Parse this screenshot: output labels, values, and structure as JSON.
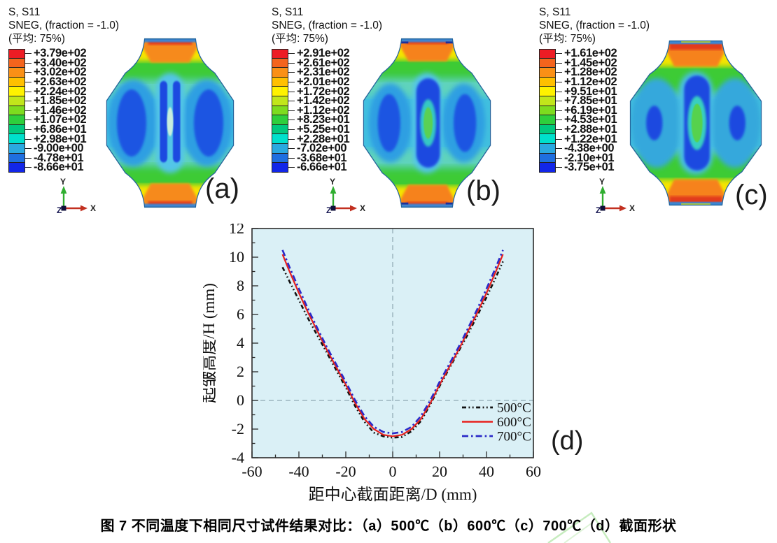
{
  "abaqus_header": {
    "line1": "S, S11",
    "line2": "SNEG, (fraction = -1.0)",
    "line3": "(平均: 75%)"
  },
  "legend_colors": [
    "#ed1c24",
    "#f4641d",
    "#fa9016",
    "#ffc000",
    "#fff200",
    "#c1e61b",
    "#7ddc1f",
    "#2ecf3c",
    "#00c97e",
    "#00e0cc",
    "#2aa9e0",
    "#1f6fe0",
    "#1226e8"
  ],
  "panels": [
    {
      "label": "(a)",
      "legend_values": [
        "+3.79e+02",
        "+3.40e+02",
        "+3.02e+02",
        "+2.63e+02",
        "+2.24e+02",
        "+1.85e+02",
        "+1.46e+02",
        "+1.07e+02",
        "+6.86e+01",
        "+2.98e+01",
        "-9.00e+00",
        "-4.78e+01",
        "-8.66e+01"
      ]
    },
    {
      "label": "(b)",
      "legend_values": [
        "+2.91e+02",
        "+2.61e+02",
        "+2.31e+02",
        "+2.01e+02",
        "+1.72e+02",
        "+1.42e+02",
        "+1.12e+02",
        "+8.23e+01",
        "+5.25e+01",
        "+2.28e+01",
        "-7.02e+00",
        "-3.68e+01",
        "-6.66e+01"
      ]
    },
    {
      "label": "(c)",
      "legend_values": [
        "+1.61e+02",
        "+1.45e+02",
        "+1.28e+02",
        "+1.12e+02",
        "+9.51e+01",
        "+7.85e+01",
        "+6.19e+01",
        "+4.53e+01",
        "+2.88e+01",
        "+1.22e+01",
        "-4.38e+00",
        "-2.10e+01",
        "-3.75e+01"
      ]
    }
  ],
  "triad": {
    "x": "X",
    "y": "Y",
    "z": "Z"
  },
  "chart_label": "(d)",
  "caption": "图 7 不同温度下相同尺寸试件结果对比：（a）500℃（b）600℃（c）700℃（d）截面形状",
  "chart_data": {
    "type": "line",
    "title": "",
    "xlabel": "距中心截面距离/D (mm)",
    "ylabel": "起皱高度/H (mm)",
    "xlim": [
      -60,
      60
    ],
    "ylim": [
      -4,
      12
    ],
    "xticks": [
      -60,
      -40,
      -20,
      0,
      20,
      40,
      60
    ],
    "yticks": [
      -4,
      -2,
      0,
      2,
      4,
      6,
      8,
      10,
      12
    ],
    "x_minor_step": 10,
    "y_minor_step": 1,
    "grid": false,
    "plot_bg": "#daf0f6",
    "frame_color": "#2b2b2b",
    "ref_line_color": "#8fa8b2",
    "reference_lines": {
      "x": 0,
      "y": 0
    },
    "legend_position": "lower right",
    "x": [
      -47,
      -44,
      -40,
      -36,
      -32,
      -28,
      -24,
      -20,
      -16,
      -12,
      -8,
      -4,
      0,
      4,
      8,
      12,
      16,
      20,
      24,
      28,
      32,
      36,
      40,
      44,
      47
    ],
    "series": [
      {
        "name": "500°C",
        "color": "#111111",
        "style": "dash-dot-dot",
        "y": [
          9.3,
          8.3,
          7.0,
          5.7,
          4.5,
          3.3,
          2.1,
          0.9,
          -0.4,
          -1.5,
          -2.25,
          -2.5,
          -2.6,
          -2.55,
          -2.15,
          -1.45,
          -0.3,
          1.0,
          2.2,
          3.4,
          4.6,
          5.9,
          7.2,
          8.6,
          9.7
        ]
      },
      {
        "name": "600°C",
        "color": "#e8211d",
        "style": "solid",
        "y": [
          10.2,
          9.0,
          7.5,
          6.1,
          4.8,
          3.5,
          2.3,
          1.1,
          -0.2,
          -1.3,
          -2.0,
          -2.4,
          -2.5,
          -2.4,
          -2.0,
          -1.3,
          -0.2,
          1.1,
          2.3,
          3.5,
          4.8,
          6.1,
          7.5,
          9.0,
          10.2
        ]
      },
      {
        "name": "700°C",
        "color": "#2a2ac8",
        "style": "dash-dot",
        "y": [
          10.5,
          9.3,
          7.8,
          6.35,
          5.0,
          3.7,
          2.5,
          1.3,
          0.0,
          -1.1,
          -1.85,
          -2.2,
          -2.3,
          -2.2,
          -1.85,
          -1.1,
          0.0,
          1.3,
          2.5,
          3.7,
          5.0,
          6.35,
          7.8,
          9.3,
          10.5
        ]
      }
    ]
  }
}
